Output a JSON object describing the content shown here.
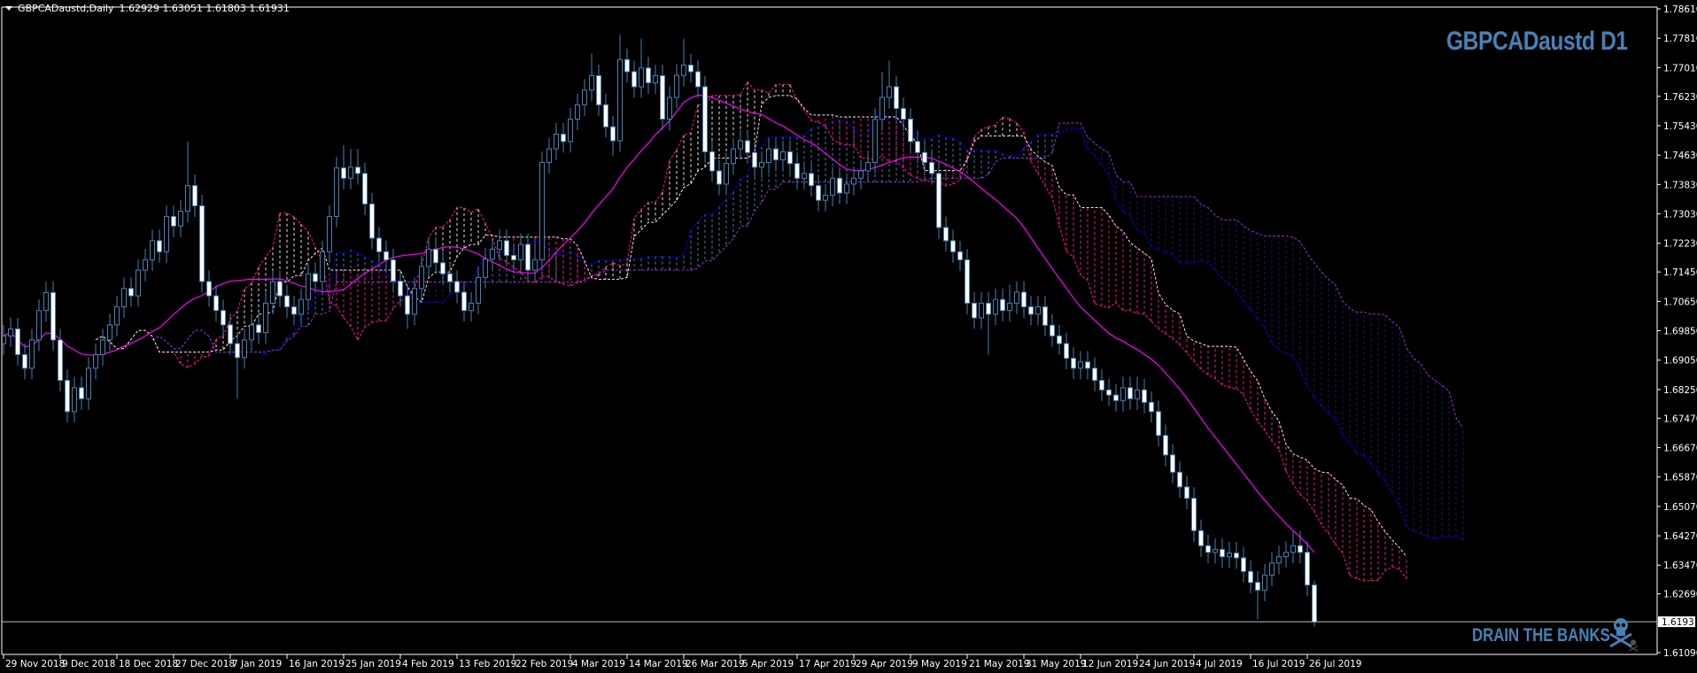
{
  "header": {
    "symbol_timeframe": "GBPCADaustd,Daily",
    "ohlc_readout": "1.62929 1.63051 1.61803 1.61931"
  },
  "overlay_title": "GBPCADaustd D1",
  "watermark": "DRAIN THE BANKS",
  "icons": {
    "menu": "triangle-down-icon",
    "watermark": "skull-crossbones-icon"
  },
  "colors": {
    "background": "#000000",
    "axis": "#ffffff",
    "candle_outline": "#4682b4",
    "bull_body": "#000000",
    "bear_body": "#ffffff",
    "ma_line": "#ff00ff",
    "cloud1_span_a": "#ff1493",
    "cloud1_span_b": "#ffe4e1",
    "cloud2_span_a": "#0000ff",
    "cloud2_span_b": "#9932cc",
    "cloud2_hatch": "#4682b4",
    "brand_text": "#4682b4",
    "current_price_line": "#c0c0c0"
  },
  "chart_data": {
    "type": "candlestick",
    "title": "GBPCADaustd D1",
    "xlabel": "",
    "ylabel": "",
    "ylim": [
      1.6109,
      1.7861
    ],
    "grid": false,
    "current_price": "1.61931",
    "price_ticks": [
      "1.78610",
      "1.77810",
      "1.77010",
      "1.76230",
      "1.75430",
      "1.74630",
      "1.73830",
      "1.73030",
      "1.72230",
      "1.71450",
      "1.70650",
      "1.69850",
      "1.69050",
      "1.68250",
      "1.67470",
      "1.66670",
      "1.65870",
      "1.65070",
      "1.64270",
      "1.63470",
      "1.62690",
      "1.61090"
    ],
    "date_labels": [
      "29 Nov 2018",
      "9 Dec 2018",
      "18 Dec 2018",
      "27 Dec 2018",
      "7 Jan 2019",
      "16 Jan 2019",
      "25 Jan 2019",
      "4 Feb 2019",
      "13 Feb 2019",
      "22 Feb 2019",
      "4 Mar 2019",
      "14 Mar 2019",
      "26 Mar 2019",
      "5 Apr 2019",
      "17 Apr 2019",
      "29 Apr 2019",
      "9 May 2019",
      "21 May 2019",
      "31 May 2019",
      "12 Jun 2019",
      "24 Jun 2019",
      "4 Jul 2019",
      "16 Jul 2019",
      "26 Jul 2019"
    ],
    "bars_per_date_label": 8,
    "candles_ohlc": [
      [
        1.695,
        1.7001,
        1.692,
        1.6971
      ],
      [
        1.6971,
        1.702,
        1.6941,
        1.699
      ],
      [
        1.699,
        1.702,
        1.689,
        1.692
      ],
      [
        1.692,
        1.695,
        1.6853,
        1.6883
      ],
      [
        1.6883,
        1.699,
        1.6853,
        1.696
      ],
      [
        1.696,
        1.707,
        1.693,
        1.704
      ],
      [
        1.704,
        1.7119,
        1.701,
        1.7089
      ],
      [
        1.7089,
        1.7119,
        1.693,
        1.696
      ],
      [
        1.696,
        1.699,
        1.682,
        1.685
      ],
      [
        1.685,
        1.688,
        1.6735,
        1.6765
      ],
      [
        1.6765,
        1.686,
        1.6735,
        1.683
      ],
      [
        1.683,
        1.686,
        1.677,
        1.68
      ],
      [
        1.68,
        1.6913,
        1.677,
        1.6883
      ],
      [
        1.6883,
        1.695,
        1.6853,
        1.692
      ],
      [
        1.692,
        1.699,
        1.689,
        1.696
      ],
      [
        1.696,
        1.7031,
        1.693,
        1.7001
      ],
      [
        1.7001,
        1.708,
        1.6971,
        1.705
      ],
      [
        1.705,
        1.713,
        1.702,
        1.71
      ],
      [
        1.71,
        1.713,
        1.705,
        1.708
      ],
      [
        1.708,
        1.718,
        1.705,
        1.715
      ],
      [
        1.715,
        1.7208,
        1.712,
        1.7178
      ],
      [
        1.7178,
        1.726,
        1.7148,
        1.723
      ],
      [
        1.723,
        1.726,
        1.717,
        1.72
      ],
      [
        1.72,
        1.7326,
        1.717,
        1.7296
      ],
      [
        1.7296,
        1.7326,
        1.724,
        1.727
      ],
      [
        1.727,
        1.734,
        1.724,
        1.731
      ],
      [
        1.731,
        1.75,
        1.728,
        1.738
      ],
      [
        1.738,
        1.741,
        1.7295,
        1.7325
      ],
      [
        1.7325,
        1.7355,
        1.7089,
        1.7119
      ],
      [
        1.7119,
        1.7149,
        1.705,
        1.708
      ],
      [
        1.708,
        1.711,
        1.701,
        1.704
      ],
      [
        1.704,
        1.707,
        1.6971,
        1.7001
      ],
      [
        1.7001,
        1.7031,
        1.692,
        1.695
      ],
      [
        1.695,
        1.698,
        1.68,
        1.6912
      ],
      [
        1.6912,
        1.699,
        1.6882,
        1.696
      ],
      [
        1.696,
        1.7031,
        1.693,
        1.7001
      ],
      [
        1.7001,
        1.7031,
        1.695,
        1.698
      ],
      [
        1.698,
        1.709,
        1.695,
        1.706
      ],
      [
        1.706,
        1.7149,
        1.703,
        1.7119
      ],
      [
        1.7119,
        1.7149,
        1.705,
        1.708
      ],
      [
        1.708,
        1.711,
        1.702,
        1.705
      ],
      [
        1.705,
        1.708,
        1.7,
        1.703
      ],
      [
        1.703,
        1.71,
        1.7,
        1.707
      ],
      [
        1.707,
        1.717,
        1.704,
        1.714
      ],
      [
        1.714,
        1.717,
        1.7089,
        1.7119
      ],
      [
        1.7119,
        1.723,
        1.7089,
        1.72
      ],
      [
        1.72,
        1.7326,
        1.717,
        1.7296
      ],
      [
        1.7296,
        1.7458,
        1.7266,
        1.7428
      ],
      [
        1.7428,
        1.749,
        1.737,
        1.74
      ],
      [
        1.74,
        1.748,
        1.737,
        1.743
      ],
      [
        1.743,
        1.748,
        1.7383,
        1.7413
      ],
      [
        1.7413,
        1.7443,
        1.73,
        1.733
      ],
      [
        1.733,
        1.736,
        1.7207,
        1.7237
      ],
      [
        1.7237,
        1.7267,
        1.717,
        1.72
      ],
      [
        1.72,
        1.723,
        1.7148,
        1.7178
      ],
      [
        1.7178,
        1.7208,
        1.709,
        1.712
      ],
      [
        1.712,
        1.715,
        1.705,
        1.708
      ],
      [
        1.708,
        1.711,
        1.699,
        1.703
      ],
      [
        1.703,
        1.713,
        1.7,
        1.71
      ],
      [
        1.71,
        1.719,
        1.707,
        1.716
      ],
      [
        1.716,
        1.7237,
        1.713,
        1.7207
      ],
      [
        1.7207,
        1.7237,
        1.714,
        1.717
      ],
      [
        1.717,
        1.72,
        1.711,
        1.714
      ],
      [
        1.714,
        1.717,
        1.7089,
        1.7119
      ],
      [
        1.7119,
        1.7149,
        1.706,
        1.709
      ],
      [
        1.709,
        1.712,
        1.701,
        1.704
      ],
      [
        1.704,
        1.709,
        1.701,
        1.706
      ],
      [
        1.706,
        1.716,
        1.703,
        1.713
      ],
      [
        1.713,
        1.721,
        1.71,
        1.718
      ],
      [
        1.718,
        1.7237,
        1.715,
        1.7207
      ],
      [
        1.7207,
        1.726,
        1.7177,
        1.723
      ],
      [
        1.723,
        1.726,
        1.716,
        1.719
      ],
      [
        1.719,
        1.722,
        1.7148,
        1.7178
      ],
      [
        1.7178,
        1.725,
        1.7148,
        1.722
      ],
      [
        1.722,
        1.725,
        1.712,
        1.715
      ],
      [
        1.715,
        1.7208,
        1.712,
        1.7178
      ],
      [
        1.7178,
        1.7473,
        1.7148,
        1.7443
      ],
      [
        1.7443,
        1.751,
        1.7413,
        1.748
      ],
      [
        1.748,
        1.755,
        1.745,
        1.752
      ],
      [
        1.752,
        1.755,
        1.747,
        1.75
      ],
      [
        1.75,
        1.7591,
        1.747,
        1.7561
      ],
      [
        1.7561,
        1.763,
        1.7531,
        1.76
      ],
      [
        1.76,
        1.767,
        1.757,
        1.764
      ],
      [
        1.764,
        1.774,
        1.761,
        1.7679
      ],
      [
        1.7679,
        1.7709,
        1.757,
        1.76
      ],
      [
        1.76,
        1.763,
        1.751,
        1.754
      ],
      [
        1.754,
        1.757,
        1.746,
        1.7502
      ],
      [
        1.7502,
        1.779,
        1.7472,
        1.7723
      ],
      [
        1.7723,
        1.7753,
        1.766,
        1.769
      ],
      [
        1.769,
        1.772,
        1.7619,
        1.7649
      ],
      [
        1.7649,
        1.778,
        1.7619,
        1.77
      ],
      [
        1.77,
        1.773,
        1.763,
        1.766
      ],
      [
        1.766,
        1.7709,
        1.763,
        1.7679
      ],
      [
        1.7679,
        1.7709,
        1.7531,
        1.7561
      ],
      [
        1.7561,
        1.765,
        1.7531,
        1.762
      ],
      [
        1.762,
        1.771,
        1.759,
        1.768
      ],
      [
        1.768,
        1.778,
        1.765,
        1.7708
      ],
      [
        1.7708,
        1.7738,
        1.766,
        1.769
      ],
      [
        1.769,
        1.772,
        1.7619,
        1.7649
      ],
      [
        1.7649,
        1.7679,
        1.7442,
        1.7472
      ],
      [
        1.7472,
        1.7502,
        1.739,
        1.742
      ],
      [
        1.742,
        1.745,
        1.7354,
        1.7384
      ],
      [
        1.7384,
        1.747,
        1.7354,
        1.744
      ],
      [
        1.744,
        1.751,
        1.741,
        1.748
      ],
      [
        1.748,
        1.7532,
        1.745,
        1.7502
      ],
      [
        1.7502,
        1.7532,
        1.744,
        1.747
      ],
      [
        1.747,
        1.75,
        1.74,
        1.743
      ],
      [
        1.743,
        1.7473,
        1.74,
        1.7443
      ],
      [
        1.7443,
        1.751,
        1.7413,
        1.748
      ],
      [
        1.748,
        1.751,
        1.742,
        1.745
      ],
      [
        1.745,
        1.7502,
        1.742,
        1.7472
      ],
      [
        1.7472,
        1.7502,
        1.741,
        1.744
      ],
      [
        1.744,
        1.747,
        1.737,
        1.74
      ],
      [
        1.74,
        1.7443,
        1.737,
        1.7413
      ],
      [
        1.7413,
        1.7443,
        1.735,
        1.738
      ],
      [
        1.738,
        1.741,
        1.731,
        1.734
      ],
      [
        1.734,
        1.7384,
        1.731,
        1.7354
      ],
      [
        1.7354,
        1.743,
        1.7324,
        1.74
      ],
      [
        1.74,
        1.743,
        1.733,
        1.736
      ],
      [
        1.736,
        1.7414,
        1.733,
        1.7384
      ],
      [
        1.7384,
        1.743,
        1.7354,
        1.74
      ],
      [
        1.74,
        1.745,
        1.737,
        1.742
      ],
      [
        1.742,
        1.7473,
        1.739,
        1.7443
      ],
      [
        1.7443,
        1.759,
        1.7413,
        1.756
      ],
      [
        1.756,
        1.769,
        1.753,
        1.762
      ],
      [
        1.762,
        1.772,
        1.759,
        1.7649
      ],
      [
        1.7649,
        1.7679,
        1.756,
        1.759
      ],
      [
        1.759,
        1.762,
        1.7531,
        1.7561
      ],
      [
        1.7561,
        1.7591,
        1.747,
        1.75
      ],
      [
        1.75,
        1.753,
        1.744,
        1.747
      ],
      [
        1.747,
        1.75,
        1.7413,
        1.7443
      ],
      [
        1.7443,
        1.7473,
        1.7383,
        1.7413
      ],
      [
        1.7413,
        1.7443,
        1.7236,
        1.7266
      ],
      [
        1.7266,
        1.7296,
        1.72,
        1.723
      ],
      [
        1.723,
        1.726,
        1.717,
        1.72
      ],
      [
        1.72,
        1.723,
        1.7148,
        1.7178
      ],
      [
        1.7178,
        1.7208,
        1.703,
        1.706
      ],
      [
        1.706,
        1.709,
        1.699,
        1.702
      ],
      [
        1.702,
        1.709,
        1.699,
        1.706
      ],
      [
        1.706,
        1.709,
        1.692,
        1.703
      ],
      [
        1.703,
        1.71,
        1.7,
        1.707
      ],
      [
        1.707,
        1.71,
        1.701,
        1.704
      ],
      [
        1.704,
        1.711,
        1.701,
        1.706
      ],
      [
        1.706,
        1.712,
        1.703,
        1.709
      ],
      [
        1.709,
        1.712,
        1.702,
        1.705
      ],
      [
        1.705,
        1.708,
        1.7,
        1.703
      ],
      [
        1.703,
        1.708,
        1.7,
        1.705
      ],
      [
        1.705,
        1.708,
        1.697,
        1.7
      ],
      [
        1.7,
        1.703,
        1.6941,
        1.6971
      ],
      [
        1.6971,
        1.7001,
        1.692,
        1.695
      ],
      [
        1.695,
        1.698,
        1.688,
        1.691
      ],
      [
        1.691,
        1.694,
        1.6853,
        1.6883
      ],
      [
        1.6883,
        1.693,
        1.6853,
        1.69
      ],
      [
        1.69,
        1.693,
        1.6853,
        1.6883
      ],
      [
        1.6883,
        1.6913,
        1.682,
        1.685
      ],
      [
        1.685,
        1.688,
        1.6794,
        1.6824
      ],
      [
        1.6824,
        1.6854,
        1.678,
        1.681
      ],
      [
        1.681,
        1.684,
        1.6765,
        1.6795
      ],
      [
        1.6795,
        1.686,
        1.6765,
        1.683
      ],
      [
        1.683,
        1.686,
        1.677,
        1.68
      ],
      [
        1.68,
        1.686,
        1.677,
        1.6824
      ],
      [
        1.6824,
        1.6854,
        1.676,
        1.679
      ],
      [
        1.679,
        1.682,
        1.6735,
        1.6765
      ],
      [
        1.6765,
        1.6795,
        1.667,
        1.67
      ],
      [
        1.67,
        1.673,
        1.6617,
        1.6647
      ],
      [
        1.6647,
        1.6677,
        1.657,
        1.66
      ],
      [
        1.66,
        1.663,
        1.653,
        1.656
      ],
      [
        1.656,
        1.659,
        1.6499,
        1.6529
      ],
      [
        1.6529,
        1.6559,
        1.6411,
        1.6441
      ],
      [
        1.6441,
        1.6471,
        1.637,
        1.64
      ],
      [
        1.64,
        1.643,
        1.6352,
        1.6382
      ],
      [
        1.6382,
        1.642,
        1.6352,
        1.639
      ],
      [
        1.639,
        1.642,
        1.634,
        1.637
      ],
      [
        1.637,
        1.641,
        1.634,
        1.638
      ],
      [
        1.638,
        1.641,
        1.6337,
        1.6367
      ],
      [
        1.6367,
        1.6397,
        1.63,
        1.633
      ],
      [
        1.633,
        1.636,
        1.627,
        1.63
      ],
      [
        1.63,
        1.633,
        1.62,
        1.6279
      ],
      [
        1.6279,
        1.635,
        1.6249,
        1.632
      ],
      [
        1.632,
        1.6383,
        1.629,
        1.6353
      ],
      [
        1.6353,
        1.64,
        1.6323,
        1.637
      ],
      [
        1.637,
        1.6412,
        1.634,
        1.6382
      ],
      [
        1.6382,
        1.644,
        1.6352,
        1.64
      ],
      [
        1.64,
        1.644,
        1.6352,
        1.6382
      ],
      [
        1.6382,
        1.6412,
        1.6263,
        1.6293
      ],
      [
        1.62929,
        1.63051,
        1.61803,
        1.61931
      ]
    ]
  }
}
